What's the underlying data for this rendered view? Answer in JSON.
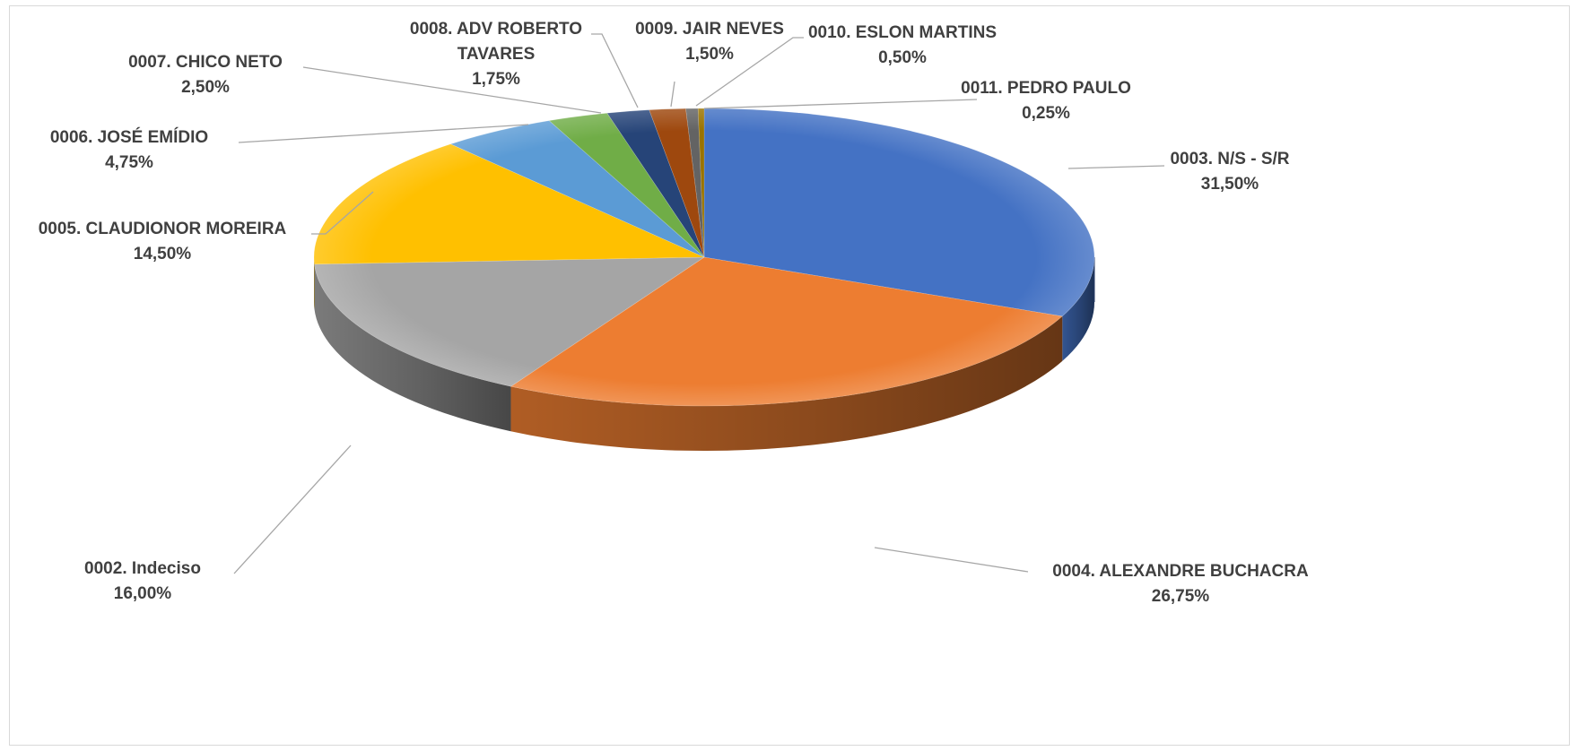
{
  "chart_data": {
    "type": "pie",
    "three_d": true,
    "legend": "none",
    "slices": [
      {
        "label": "0003. N/S - S/R",
        "value": 31.5,
        "display": "31,50%",
        "color": "#4472c4"
      },
      {
        "label": "0004. ALEXANDRE BUCHACRA",
        "value": 26.75,
        "display": "26,75%",
        "color": "#ed7d31"
      },
      {
        "label": "0002. Indeciso",
        "value": 16.0,
        "display": "16,00%",
        "color": "#a5a5a5"
      },
      {
        "label": "0005. CLAUDIONOR MOREIRA",
        "value": 14.5,
        "display": "14,50%",
        "color": "#ffc000"
      },
      {
        "label": "0006. JOSÉ EMÍDIO",
        "value": 4.75,
        "display": "4,75%",
        "color": "#5b9bd5"
      },
      {
        "label": "0007. CHICO NETO",
        "value": 2.5,
        "display": "2,50%",
        "color": "#70ad47"
      },
      {
        "label": "0008. ADV ROBERTO TAVARES",
        "value": 1.75,
        "display": "1,75%",
        "color": "#264478"
      },
      {
        "label": "0009. JAIR NEVES",
        "value": 1.5,
        "display": "1,50%",
        "color": "#9e480e"
      },
      {
        "label": "0010. ESLON MARTINS",
        "value": 0.5,
        "display": "0,50%",
        "color": "#636363"
      },
      {
        "label": "0011. PEDRO PAULO",
        "value": 0.25,
        "display": "0,25%",
        "color": "#997300"
      }
    ]
  }
}
